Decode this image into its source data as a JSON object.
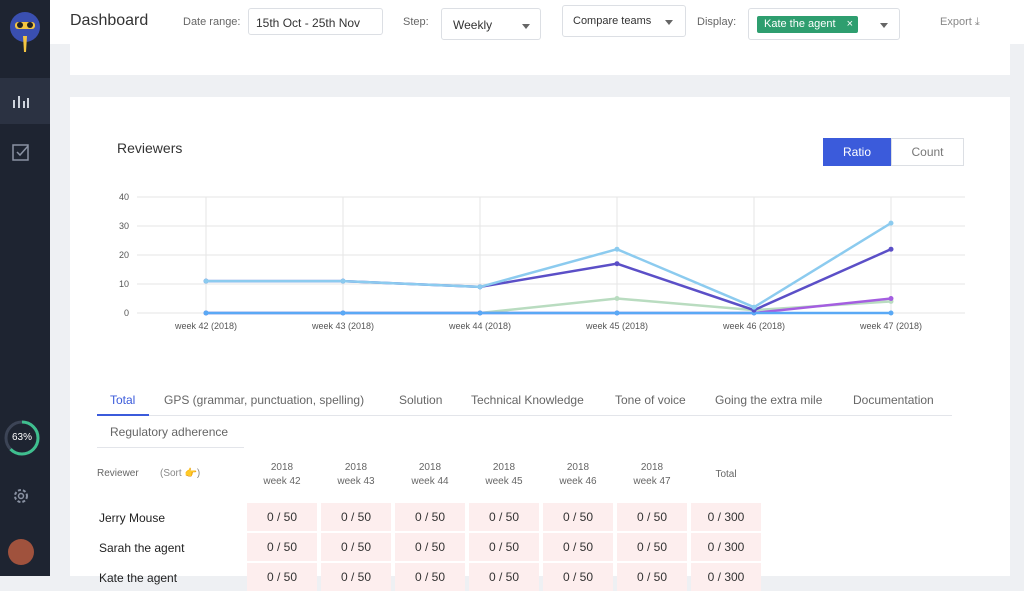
{
  "sidebar": {
    "progress": "63%"
  },
  "header": {
    "title": "Dashboard",
    "date_range_label": "Date range:",
    "date_range": "15th Oct - 25th Nov",
    "step_label": "Step:",
    "step": "Weekly",
    "compare": "Compare teams",
    "display_label": "Display:",
    "display_tag": "Kate the agent",
    "export": "Export"
  },
  "reviewers": {
    "title": "Reviewers",
    "toggle": [
      "Ratio",
      "Count"
    ]
  },
  "chart_data": {
    "type": "line",
    "categories": [
      "week 42 (2018)",
      "week 43 (2018)",
      "week 44 (2018)",
      "week 45 (2018)",
      "week 46 (2018)",
      "week 47 (2018)"
    ],
    "series": [
      {
        "color": "#b9dcc0",
        "values": [
          0,
          0,
          0,
          5,
          1,
          4
        ]
      },
      {
        "color": "#a45ee0",
        "values": [
          0,
          0,
          0,
          0,
          0,
          5
        ]
      },
      {
        "color": "#5aa9f5",
        "values": [
          0,
          0,
          0,
          0,
          0,
          0
        ]
      },
      {
        "color": "#5b4fc7",
        "values": [
          11,
          11,
          9,
          17,
          1,
          22
        ]
      },
      {
        "color": "#8ccbef",
        "values": [
          11,
          11,
          9,
          22,
          2,
          31
        ]
      }
    ],
    "ylim": [
      0,
      40
    ],
    "yticks": [
      0,
      10,
      20,
      30,
      40
    ],
    "grid": true
  },
  "tabs": [
    "Total",
    "GPS (grammar, punctuation, spelling)",
    "Solution",
    "Technical Knowledge",
    "Tone of voice",
    "Going the extra mile",
    "Documentation",
    "Regulatory adherence"
  ],
  "table": {
    "reviewer_header": "Reviewer",
    "sort": "(Sort 👉)",
    "columns": [
      [
        "2018",
        "week 42"
      ],
      [
        "2018",
        "week 43"
      ],
      [
        "2018",
        "week 44"
      ],
      [
        "2018",
        "week 45"
      ],
      [
        "2018",
        "week 46"
      ],
      [
        "2018",
        "week 47"
      ]
    ],
    "total_header": "Total",
    "rows": [
      {
        "name": "Jerry Mouse",
        "cells": [
          "0 / 50",
          "0 / 50",
          "0 / 50",
          "0 / 50",
          "0 / 50",
          "0 / 50"
        ],
        "total": "0 / 300"
      },
      {
        "name": "Sarah the agent",
        "cells": [
          "0 / 50",
          "0 / 50",
          "0 / 50",
          "0 / 50",
          "0 / 50",
          "0 / 50"
        ],
        "total": "0 / 300"
      },
      {
        "name": "Kate the agent",
        "cells": [
          "0 / 50",
          "0 / 50",
          "0 / 50",
          "0 / 50",
          "0 / 50",
          "0 / 50"
        ],
        "total": "0 / 300"
      }
    ]
  }
}
